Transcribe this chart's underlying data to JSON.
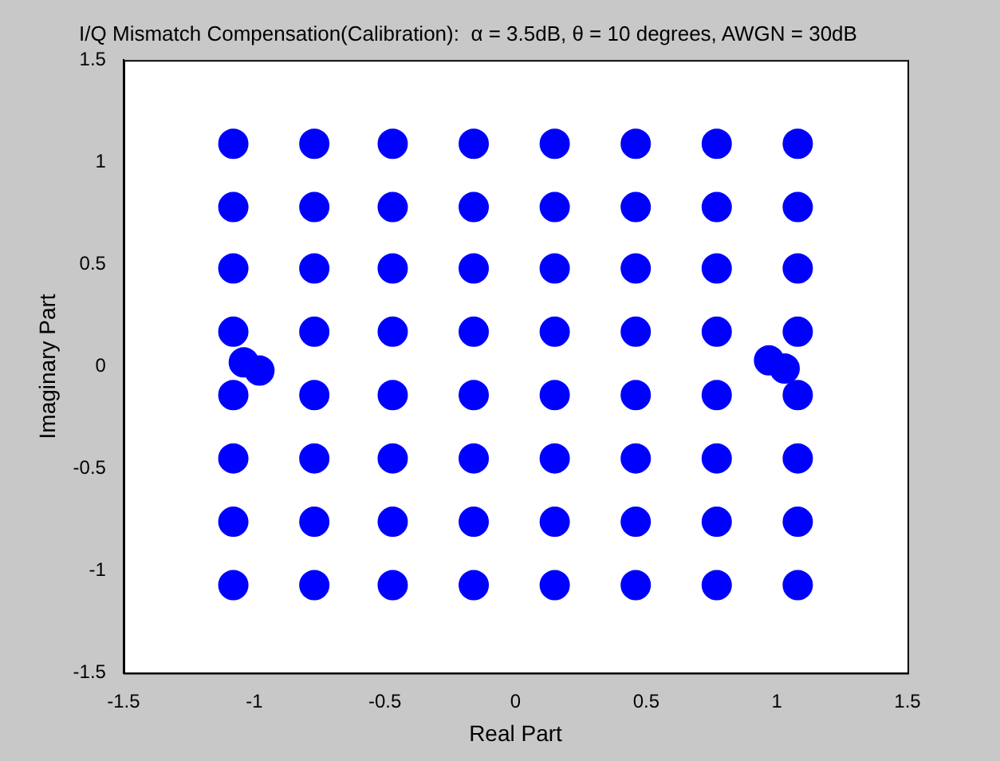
{
  "chart_data": {
    "type": "scatter",
    "title": "I/Q Mismatch Compensation(Calibration):  α = 3.5dB, θ = 10 degrees, AWGN = 30dB",
    "xlabel": "Real Part",
    "ylabel": "Imaginary Part",
    "xlim": [
      -1.5,
      1.5
    ],
    "ylim": [
      -1.5,
      1.5
    ],
    "xticks": [
      -1.5,
      -1,
      -0.5,
      0,
      0.5,
      1,
      1.5
    ],
    "yticks": [
      -1.5,
      -1,
      -0.5,
      0,
      0.5,
      1,
      1.5
    ],
    "grid": false,
    "legend": false,
    "marker": "circle",
    "series": [
      {
        "color": "#0000ff",
        "x": [
          -1.08,
          -0.77,
          -0.47,
          -0.16,
          0.15,
          0.46,
          0.77,
          1.08,
          -1.08,
          -0.77,
          -0.47,
          -0.16,
          0.15,
          0.46,
          0.77,
          1.08,
          -1.08,
          -0.77,
          -0.47,
          -0.16,
          0.15,
          0.46,
          0.77,
          1.08,
          -1.08,
          -0.77,
          -0.47,
          -0.16,
          0.15,
          0.46,
          0.77,
          1.08,
          -1.08,
          -0.77,
          -0.47,
          -0.16,
          0.15,
          0.46,
          0.77,
          1.08,
          -1.08,
          -0.77,
          -0.47,
          -0.16,
          0.15,
          0.46,
          0.77,
          1.08,
          -1.08,
          -0.77,
          -0.47,
          -0.16,
          0.15,
          0.46,
          0.77,
          1.08,
          -1.08,
          -0.77,
          -0.47,
          -0.16,
          0.15,
          0.46,
          0.77,
          1.08,
          -1.04,
          -0.98,
          0.97,
          1.03
        ],
        "values": [
          1.09,
          1.09,
          1.09,
          1.09,
          1.09,
          1.09,
          1.09,
          1.09,
          0.78,
          0.78,
          0.78,
          0.78,
          0.78,
          0.78,
          0.78,
          0.78,
          0.48,
          0.48,
          0.48,
          0.48,
          0.48,
          0.48,
          0.48,
          0.48,
          0.17,
          0.17,
          0.17,
          0.17,
          0.17,
          0.17,
          0.17,
          0.17,
          -0.14,
          -0.14,
          -0.14,
          -0.14,
          -0.14,
          -0.14,
          -0.14,
          -0.14,
          -0.45,
          -0.45,
          -0.45,
          -0.45,
          -0.45,
          -0.45,
          -0.45,
          -0.45,
          -0.76,
          -0.76,
          -0.76,
          -0.76,
          -0.76,
          -0.76,
          -0.76,
          -0.76,
          -1.07,
          -1.07,
          -1.07,
          -1.07,
          -1.07,
          -1.07,
          -1.07,
          -1.07,
          0.02,
          -0.02,
          0.03,
          -0.01
        ]
      }
    ]
  }
}
